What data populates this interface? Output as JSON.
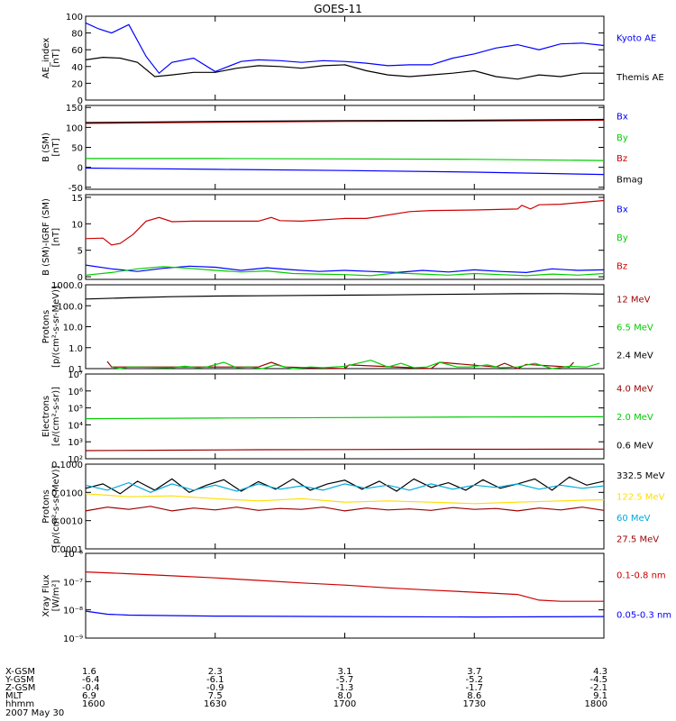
{
  "title": "GOES-11",
  "colors": {
    "black": "#000000",
    "blue": "#0000ff",
    "red": "#cc0000",
    "dark_red": "#990000",
    "green": "#00cc00",
    "bright_green": "#00ee00",
    "yellow": "#ffdd00",
    "cyan": "#00aadd"
  },
  "x_axis": {
    "range": [
      1600,
      1800
    ],
    "ticks": [
      1600,
      1630,
      1700,
      1730,
      1800
    ],
    "row_labels": [
      "X-GSM",
      "Y-GSM",
      "Z-GSM",
      "MLT",
      "hhmm"
    ],
    "columns": [
      [
        "1.6",
        "-6.4",
        "-0.4",
        "6.9",
        "1600"
      ],
      [
        "2.3",
        "-6.1",
        "-0.9",
        "7.5",
        "1630"
      ],
      [
        "3.1",
        "-5.7",
        "-1.3",
        "8.0",
        "1700"
      ],
      [
        "3.7",
        "-5.2",
        "-1.7",
        "8.6",
        "1730"
      ],
      [
        "4.3",
        "-4.5",
        "-2.1",
        "9.1",
        "1800"
      ]
    ],
    "date": "2007 May 30"
  },
  "chart_data": [
    {
      "type": "line",
      "ylabel": [
        "AE_index",
        "[nT]"
      ],
      "ylim": [
        0,
        100
      ],
      "yticks": [
        "0",
        "20",
        "40",
        "60",
        "80",
        "100"
      ],
      "ytick_values": [
        0,
        20,
        40,
        60,
        80,
        100
      ],
      "series": [
        {
          "name": "Kyoto AE",
          "color": "#0000ff",
          "x": [
            1600,
            1603,
            1606,
            1610,
            1614,
            1617,
            1620,
            1625,
            1630,
            1633,
            1636,
            1640,
            1645,
            1650,
            1655,
            1700,
            1705,
            1710,
            1715,
            1720,
            1725,
            1730,
            1735,
            1740,
            1745,
            1750,
            1755,
            1800
          ],
          "y": [
            92,
            85,
            80,
            90,
            52,
            32,
            45,
            50,
            34,
            40,
            46,
            48,
            47,
            45,
            47,
            46,
            44,
            41,
            42,
            42,
            50,
            55,
            62,
            66,
            60,
            67,
            68,
            65
          ]
        },
        {
          "name": "Themis AE",
          "color": "#000000",
          "x": [
            1600,
            1604,
            1608,
            1612,
            1616,
            1620,
            1625,
            1630,
            1635,
            1640,
            1645,
            1650,
            1655,
            1700,
            1705,
            1710,
            1715,
            1720,
            1725,
            1730,
            1735,
            1740,
            1745,
            1750,
            1755,
            1800
          ],
          "y": [
            48,
            51,
            50,
            45,
            28,
            30,
            33,
            33,
            38,
            41,
            40,
            38,
            41,
            42,
            35,
            30,
            28,
            30,
            32,
            35,
            28,
            25,
            30,
            28,
            32,
            32
          ]
        }
      ]
    },
    {
      "type": "line",
      "ylabel": [
        "B (SM)",
        "[nT]"
      ],
      "ylim": [
        -55,
        155
      ],
      "yticks": [
        "-50",
        "0",
        "50",
        "100",
        "150"
      ],
      "ytick_values": [
        -50,
        0,
        50,
        100,
        150
      ],
      "series": [
        {
          "name": "Bx",
          "color": "#0000ff",
          "x": [
            1600,
            1630,
            1700,
            1730,
            1800
          ],
          "y": [
            -2,
            -5,
            -8,
            -12,
            -18
          ]
        },
        {
          "name": "By",
          "color": "#00cc00",
          "x": [
            1600,
            1630,
            1700,
            1730,
            1800
          ],
          "y": [
            22,
            22,
            21,
            20,
            17
          ]
        },
        {
          "name": "Bz",
          "color": "#cc0000",
          "x": [
            1600,
            1630,
            1700,
            1730,
            1800
          ],
          "y": [
            110,
            113,
            115,
            116,
            118
          ]
        },
        {
          "name": "Bmag",
          "color": "#000000",
          "x": [
            1600,
            1630,
            1700,
            1730,
            1800
          ],
          "y": [
            112,
            115,
            117,
            118,
            120
          ]
        }
      ]
    },
    {
      "type": "line",
      "ylabel": [
        "B (SM)-IGRF (SM)",
        "[nT]"
      ],
      "ylim": [
        -0.5,
        15.5
      ],
      "yticks": [
        "0",
        "5",
        "10",
        "15"
      ],
      "ytick_values": [
        0,
        5,
        10,
        15
      ],
      "series": [
        {
          "name": "Bx",
          "color": "#0000ff",
          "x": [
            1600,
            1606,
            1612,
            1618,
            1624,
            1630,
            1636,
            1642,
            1648,
            1654,
            1700,
            1706,
            1712,
            1718,
            1724,
            1730,
            1736,
            1742,
            1748,
            1754,
            1800
          ],
          "y": [
            2.2,
            1.5,
            1.0,
            1.6,
            2.0,
            1.8,
            1.2,
            1.7,
            1.3,
            1.0,
            1.2,
            1.0,
            0.8,
            1.2,
            0.9,
            1.3,
            1.0,
            0.8,
            1.5,
            1.2,
            1.3
          ]
        },
        {
          "name": "By",
          "color": "#00cc00",
          "x": [
            1600,
            1606,
            1612,
            1618,
            1624,
            1630,
            1636,
            1642,
            1648,
            1654,
            1700,
            1706,
            1712,
            1718,
            1724,
            1730,
            1736,
            1742,
            1748,
            1754,
            1800
          ],
          "y": [
            0.3,
            0.8,
            1.5,
            1.9,
            1.6,
            1.2,
            0.9,
            1.1,
            0.6,
            0.5,
            0.4,
            0.2,
            0.7,
            0.5,
            0.3,
            0.6,
            0.4,
            0.2,
            0.5,
            0.3,
            0.6
          ]
        },
        {
          "name": "Bz",
          "color": "#cc0000",
          "x": [
            1600,
            1604,
            1606,
            1608,
            1611,
            1614,
            1617,
            1620,
            1625,
            1630,
            1640,
            1643,
            1645,
            1650,
            1700,
            1705,
            1715,
            1720,
            1730,
            1740,
            1741,
            1743,
            1745,
            1750,
            1800
          ],
          "y": [
            7.2,
            7.3,
            6.0,
            6.3,
            8.0,
            10.5,
            11.2,
            10.4,
            10.5,
            10.5,
            10.5,
            11.2,
            10.6,
            10.5,
            11.0,
            11.0,
            12.3,
            12.5,
            12.6,
            12.8,
            13.5,
            12.8,
            13.6,
            13.7,
            14.4
          ]
        }
      ]
    },
    {
      "type": "line",
      "scale": "log",
      "ylabel": [
        "Protons",
        "[p/(cm²-s-sr-MeV)]"
      ],
      "ylim": [
        0.1,
        1000
      ],
      "yticks": [
        "0.1",
        "1.0",
        "10.0",
        "100.0",
        "1000.0"
      ],
      "ytick_values": [
        0.1,
        1,
        10,
        100,
        1000
      ],
      "series": [
        {
          "name": "12 MeV",
          "color": "#990000",
          "x": [
            1605,
            1606,
            1640,
            1643,
            1646,
            1700,
            1701,
            1720,
            1722,
            1735,
            1737,
            1740,
            1742,
            1752,
            1753
          ],
          "y": [
            0.22,
            0.12,
            0.12,
            0.2,
            0.12,
            0.1,
            0.15,
            0.1,
            0.2,
            0.12,
            0.18,
            0.1,
            0.16,
            0.12,
            0.2
          ]
        },
        {
          "name": "6.5 MeV",
          "color": "#00cc00",
          "x": [
            1606,
            1608,
            1610,
            1620,
            1623,
            1626,
            1628,
            1632,
            1635,
            1638,
            1641,
            1644,
            1648,
            1652,
            1655,
            1700,
            1706,
            1710,
            1713,
            1716,
            1719,
            1722,
            1726,
            1729,
            1733,
            1736,
            1740,
            1744,
            1748,
            1752,
            1756,
            1759
          ],
          "y": [
            0.12,
            0.1,
            0.12,
            0.11,
            0.13,
            0.11,
            0.12,
            0.2,
            0.11,
            0.12,
            0.1,
            0.15,
            0.1,
            0.12,
            0.11,
            0.13,
            0.25,
            0.12,
            0.18,
            0.11,
            0.12,
            0.2,
            0.12,
            0.12,
            0.15,
            0.11,
            0.12,
            0.18,
            0.1,
            0.13,
            0.12,
            0.18
          ]
        },
        {
          "name": "2.4 MeV",
          "color": "#000000",
          "x": [
            1600,
            1610,
            1620,
            1630,
            1640,
            1650,
            1700,
            1710,
            1720,
            1730,
            1740,
            1750,
            1800
          ],
          "y": [
            210,
            240,
            270,
            290,
            300,
            310,
            320,
            330,
            345,
            360,
            375,
            380,
            360
          ]
        }
      ]
    },
    {
      "type": "line",
      "scale": "log",
      "ylabel": [
        "Electrons",
        "[e/(cm²-s-sr)]"
      ],
      "ylim": [
        100,
        10000000
      ],
      "yticks": [
        "10²",
        "10³",
        "10⁴",
        "10⁵",
        "10⁶",
        "10⁷"
      ],
      "ytick_values": [
        100,
        1000,
        10000,
        100000,
        1000000,
        10000000
      ],
      "series": [
        {
          "name": "4.0 MeV",
          "color": "#990000",
          "x": [
            1600,
            1620,
            1640,
            1700,
            1720,
            1740,
            1800
          ],
          "y": [
            300,
            320,
            340,
            350,
            360,
            360,
            370
          ]
        },
        {
          "name": "2.0 MeV",
          "color": "#00cc00",
          "x": [
            1600,
            1630,
            1700,
            1730,
            1800
          ],
          "y": [
            23000,
            25000,
            27000,
            29000,
            30000
          ]
        },
        {
          "name": "0.6 MeV",
          "color": "#000000",
          "x": [],
          "y": []
        }
      ]
    },
    {
      "type": "line",
      "scale": "log",
      "ylabel": [
        "Protons",
        "[p/(cm²-s-sr-MeV)]"
      ],
      "ylim": [
        0.0001,
        0.1
      ],
      "yticks": [
        "0.0001",
        "0.0010",
        "0.0100",
        "0.1000"
      ],
      "ytick_values": [
        0.0001,
        0.001,
        0.01,
        0.1
      ],
      "series": [
        {
          "name": "332.5 MeV",
          "color": "#000000",
          "x": [
            1600,
            1604,
            1608,
            1612,
            1616,
            1620,
            1624,
            1628,
            1632,
            1636,
            1640,
            1644,
            1648,
            1652,
            1656,
            1700,
            1704,
            1708,
            1712,
            1716,
            1720,
            1724,
            1728,
            1732,
            1736,
            1740,
            1744,
            1748,
            1752,
            1756,
            1800
          ],
          "y": [
            0.014,
            0.02,
            0.009,
            0.025,
            0.012,
            0.03,
            0.01,
            0.018,
            0.028,
            0.011,
            0.024,
            0.013,
            0.03,
            0.012,
            0.02,
            0.027,
            0.013,
            0.025,
            0.011,
            0.03,
            0.015,
            0.022,
            0.012,
            0.028,
            0.014,
            0.02,
            0.03,
            0.012,
            0.035,
            0.018,
            0.025
          ]
        },
        {
          "name": "122.5 MeV",
          "color": "#ffdd00",
          "x": [
            1600,
            1610,
            1620,
            1630,
            1640,
            1650,
            1700,
            1710,
            1720,
            1730,
            1740,
            1750,
            1800
          ],
          "y": [
            0.009,
            0.007,
            0.0075,
            0.006,
            0.005,
            0.006,
            0.0045,
            0.005,
            0.0045,
            0.004,
            0.0045,
            0.005,
            0.0055
          ]
        },
        {
          "name": "60 MeV",
          "color": "#00aadd",
          "x": [
            1600,
            1605,
            1610,
            1615,
            1620,
            1625,
            1630,
            1635,
            1640,
            1645,
            1650,
            1655,
            1700,
            1705,
            1710,
            1715,
            1720,
            1725,
            1730,
            1735,
            1740,
            1745,
            1750,
            1755,
            1800
          ],
          "y": [
            0.018,
            0.012,
            0.022,
            0.01,
            0.02,
            0.012,
            0.018,
            0.011,
            0.02,
            0.013,
            0.017,
            0.012,
            0.02,
            0.014,
            0.018,
            0.012,
            0.02,
            0.013,
            0.018,
            0.015,
            0.02,
            0.013,
            0.018,
            0.014,
            0.017
          ]
        },
        {
          "name": "27.5 MeV",
          "color": "#990000",
          "x": [
            1600,
            1605,
            1610,
            1615,
            1620,
            1625,
            1630,
            1635,
            1640,
            1645,
            1650,
            1655,
            1700,
            1705,
            1710,
            1715,
            1720,
            1725,
            1730,
            1735,
            1740,
            1745,
            1750,
            1755,
            1800
          ],
          "y": [
            0.0022,
            0.003,
            0.0025,
            0.0032,
            0.0022,
            0.0028,
            0.0024,
            0.003,
            0.0023,
            0.0027,
            0.0025,
            0.003,
            0.0022,
            0.0028,
            0.0024,
            0.0026,
            0.0023,
            0.0029,
            0.0025,
            0.0027,
            0.0022,
            0.0028,
            0.0024,
            0.003,
            0.0023
          ]
        }
      ]
    },
    {
      "type": "line",
      "scale": "log",
      "ylabel": [
        "Xray Flux",
        "[W/m²]"
      ],
      "ylim": [
        1e-09,
        1e-06
      ],
      "yticks": [
        "10⁻⁹",
        "10⁻⁸",
        "10⁻⁷",
        "10⁻⁶"
      ],
      "ytick_values": [
        1e-09,
        1e-08,
        1e-07,
        1e-06
      ],
      "series": [
        {
          "name": "0.1-0.8 nm",
          "color": "#cc0000",
          "x": [
            1600,
            1610,
            1620,
            1630,
            1640,
            1650,
            1700,
            1710,
            1720,
            1730,
            1740,
            1745,
            1750,
            1800
          ],
          "y": [
            2.2e-07,
            1.9e-07,
            1.6e-07,
            1.35e-07,
            1.1e-07,
            9e-08,
            7.5e-08,
            6e-08,
            5e-08,
            4.2e-08,
            3.5e-08,
            2.2e-08,
            2e-08,
            2e-08
          ]
        },
        {
          "name": "0.05-0.3 nm",
          "color": "#0000ff",
          "x": [
            1600,
            1605,
            1610,
            1630,
            1700,
            1730,
            1800
          ],
          "y": [
            9e-09,
            7e-09,
            6.5e-09,
            6e-09,
            5.8e-09,
            5.6e-09,
            5.8e-09
          ]
        }
      ]
    }
  ]
}
